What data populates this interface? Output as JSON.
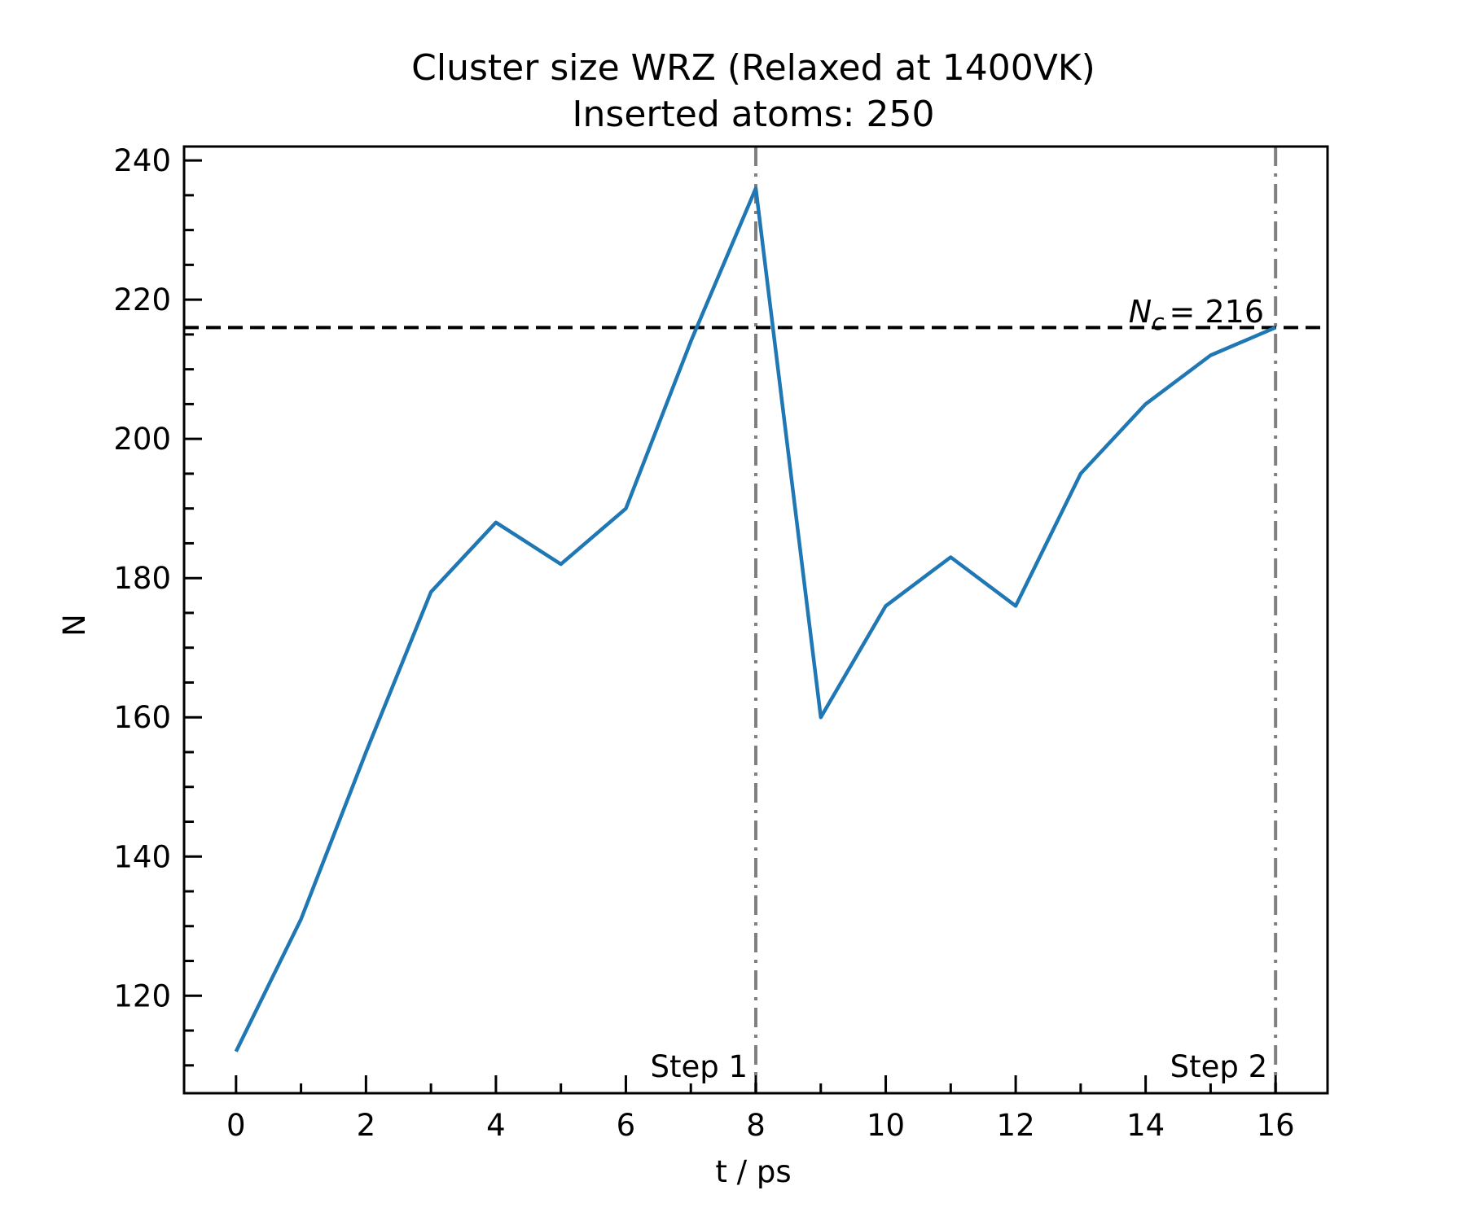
{
  "chart_data": {
    "type": "line",
    "title_line1": "Cluster size WRZ (Relaxed at 1400VK)",
    "title_line2": "Inserted atoms: 250",
    "xlabel": "t / ps",
    "ylabel": "N",
    "xlim": [
      -0.8,
      16.8
    ],
    "ylim": [
      106,
      242
    ],
    "x_ticks": [
      0,
      2,
      4,
      6,
      8,
      10,
      12,
      14,
      16
    ],
    "y_ticks": [
      120,
      140,
      160,
      180,
      200,
      220,
      240
    ],
    "series": [
      {
        "color": "#1f77b4",
        "x": [
          0,
          1,
          2,
          3,
          4,
          5,
          6,
          7,
          8,
          9,
          10,
          11,
          12,
          13,
          14,
          15,
          16
        ],
        "y": [
          112,
          131,
          155,
          178,
          188,
          182,
          190,
          214,
          236,
          160,
          176,
          183,
          176,
          195,
          205,
          212,
          216
        ]
      }
    ],
    "hline": {
      "y": 216,
      "color": "#000000",
      "label_symbol": "N",
      "label_subscript": "c",
      "label_value": "= 216"
    },
    "vlines": [
      {
        "x": 8,
        "color": "#808080",
        "label": "Step 1"
      },
      {
        "x": 16,
        "color": "#808080",
        "label": "Step 2"
      }
    ],
    "grid": false,
    "legend": "none"
  }
}
